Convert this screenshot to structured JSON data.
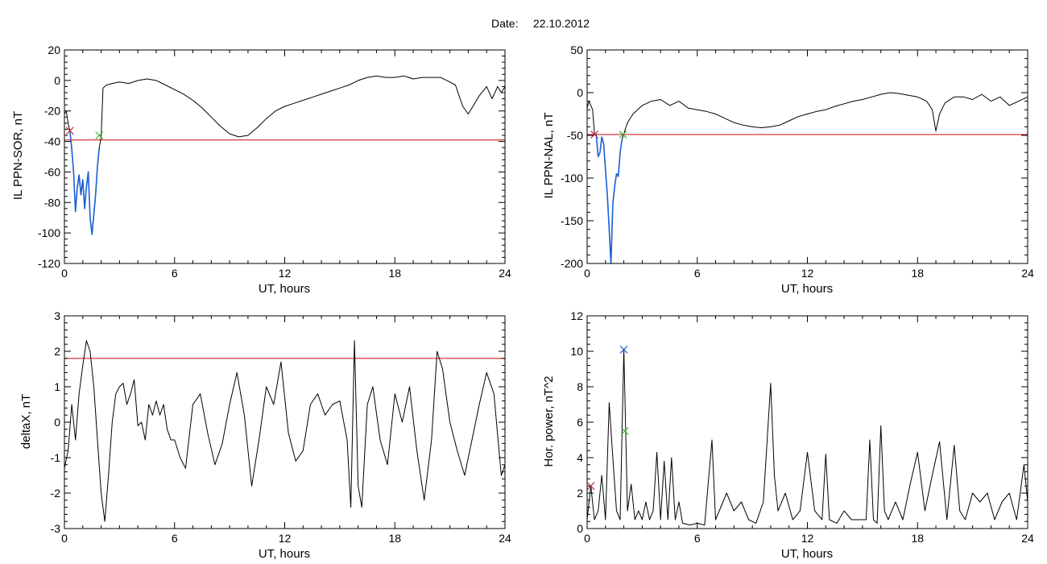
{
  "header": {
    "date_label": "Date:",
    "date_value": "22.10.2012"
  },
  "colors": {
    "trace": "#000000",
    "highlight": "#1a5fd6",
    "threshold": "#d42020",
    "start_marker": "#c0303a",
    "end_marker": "#38b030",
    "peak_marker": "#1a5fd6"
  },
  "chart_data": [
    {
      "id": "sor",
      "type": "line",
      "ylabel": "IL PPN-SOR, nT",
      "xlabel": "UT, hours",
      "xlim": [
        0,
        24
      ],
      "ylim": [
        -120,
        20
      ],
      "xticks": [
        0,
        6,
        12,
        18,
        24
      ],
      "yticks": [
        -120,
        -100,
        -80,
        -60,
        -40,
        -20,
        0,
        20
      ],
      "threshold": -39,
      "highlight_range": [
        0.25,
        1.95
      ],
      "series": [
        {
          "x": [
            0,
            0.1,
            0.2,
            0.3,
            0.4,
            0.5,
            0.6,
            0.7,
            0.8,
            0.9,
            1.0,
            1.1,
            1.2,
            1.3,
            1.4,
            1.5,
            1.6,
            1.7,
            1.8,
            1.9,
            2.0,
            2.1,
            2.3,
            2.6,
            3.0,
            3.5,
            4.0,
            4.5,
            5.0,
            5.5,
            6.0,
            6.5,
            7.0,
            7.5,
            8.0,
            8.5,
            9.0,
            9.5,
            10.0,
            10.5,
            11.0,
            11.5,
            12.0,
            12.5,
            13.0,
            13.5,
            14.0,
            14.5,
            15.0,
            15.5,
            16.0,
            16.5,
            17.0,
            17.5,
            18.0,
            18.5,
            19.0,
            19.5,
            20.0,
            20.5,
            21.0,
            21.3,
            21.5,
            21.7,
            22.0,
            22.3,
            22.6,
            23.0,
            23.3,
            23.6,
            23.8,
            24.0
          ],
          "y": [
            -22,
            -20,
            -28,
            -33,
            -45,
            -60,
            -86,
            -70,
            -62,
            -75,
            -65,
            -84,
            -70,
            -60,
            -90,
            -101,
            -88,
            -75,
            -56,
            -44,
            -37,
            -5,
            -3,
            -2,
            -1,
            -2,
            0,
            1,
            0,
            -3,
            -6,
            -9,
            -13,
            -18,
            -24,
            -30,
            -35,
            -37,
            -36,
            -31,
            -25,
            -20,
            -17,
            -15,
            -13,
            -11,
            -9,
            -7,
            -5,
            -3,
            0,
            2,
            3,
            2,
            2,
            3,
            1,
            2,
            2,
            2,
            -1,
            -3,
            -10,
            -17,
            -22,
            -16,
            -10,
            -4,
            -12,
            -4,
            -8,
            -4
          ]
        }
      ],
      "markers": [
        {
          "kind": "start",
          "x": 0.3,
          "y": -33
        },
        {
          "kind": "end",
          "x": 1.9,
          "y": -36
        }
      ]
    },
    {
      "id": "nal",
      "type": "line",
      "ylabel": "IL PPN-NAL, nT",
      "xlabel": "UT, hours",
      "xlim": [
        0,
        24
      ],
      "ylim": [
        -200,
        50
      ],
      "xticks": [
        0,
        6,
        12,
        18,
        24
      ],
      "yticks": [
        -200,
        -150,
        -100,
        -50,
        0,
        50
      ],
      "threshold": -49,
      "highlight_range": [
        0.35,
        1.95
      ],
      "series": [
        {
          "x": [
            0,
            0.1,
            0.2,
            0.3,
            0.4,
            0.5,
            0.6,
            0.7,
            0.8,
            0.9,
            1.0,
            1.1,
            1.2,
            1.3,
            1.4,
            1.5,
            1.6,
            1.7,
            1.8,
            1.9,
            2.0,
            2.2,
            2.5,
            3.0,
            3.5,
            4.0,
            4.5,
            5.0,
            5.5,
            6.0,
            6.5,
            7.0,
            7.5,
            8.0,
            8.5,
            9.0,
            9.5,
            10.0,
            10.5,
            11.0,
            11.5,
            12.0,
            12.5,
            13.0,
            13.5,
            14.0,
            14.5,
            15.0,
            15.5,
            16.0,
            16.5,
            17.0,
            17.5,
            18.0,
            18.5,
            18.8,
            19.0,
            19.2,
            19.5,
            20.0,
            20.5,
            21.0,
            21.5,
            22.0,
            22.5,
            23.0,
            23.5,
            24.0
          ],
          "y": [
            -18,
            -10,
            -15,
            -20,
            -48,
            -50,
            -75,
            -70,
            -52,
            -60,
            -90,
            -120,
            -160,
            -200,
            -130,
            -110,
            -95,
            -98,
            -70,
            -55,
            -48,
            -35,
            -25,
            -15,
            -10,
            -8,
            -15,
            -10,
            -18,
            -20,
            -22,
            -25,
            -30,
            -35,
            -38,
            -40,
            -41,
            -40,
            -38,
            -33,
            -28,
            -25,
            -22,
            -20,
            -16,
            -13,
            -10,
            -8,
            -5,
            -2,
            0,
            -1,
            -3,
            -5,
            -10,
            -20,
            -45,
            -25,
            -12,
            -5,
            -5,
            -8,
            -2,
            -10,
            -5,
            -15,
            -10,
            -5
          ]
        }
      ],
      "markers": [
        {
          "kind": "start",
          "x": 0.4,
          "y": -49
        },
        {
          "kind": "end",
          "x": 1.95,
          "y": -49
        }
      ]
    },
    {
      "id": "deltax",
      "type": "line",
      "ylabel": "deltaX, nT",
      "xlabel": "UT, hours",
      "xlim": [
        0,
        24
      ],
      "ylim": [
        -3,
        3
      ],
      "xticks": [
        0,
        6,
        12,
        18,
        24
      ],
      "yticks": [
        -3,
        -2,
        -1,
        0,
        1,
        2,
        3
      ],
      "threshold": 1.8,
      "series": [
        {
          "x": [
            0,
            0.2,
            0.4,
            0.6,
            0.8,
            1.0,
            1.2,
            1.4,
            1.6,
            1.8,
            2.0,
            2.2,
            2.4,
            2.6,
            2.8,
            3.0,
            3.2,
            3.4,
            3.6,
            3.8,
            4.0,
            4.2,
            4.4,
            4.6,
            4.8,
            5.0,
            5.2,
            5.4,
            5.6,
            5.8,
            6.0,
            6.3,
            6.6,
            7.0,
            7.4,
            7.8,
            8.2,
            8.6,
            9.0,
            9.4,
            9.8,
            10.2,
            10.6,
            11.0,
            11.4,
            11.8,
            12.2,
            12.6,
            13.0,
            13.4,
            13.8,
            14.2,
            14.6,
            15.0,
            15.4,
            15.6,
            15.8,
            16.0,
            16.2,
            16.5,
            16.8,
            17.2,
            17.6,
            18.0,
            18.4,
            18.8,
            19.2,
            19.6,
            20.0,
            20.3,
            20.6,
            21.0,
            21.4,
            21.8,
            22.2,
            22.6,
            23.0,
            23.4,
            23.8,
            24.0
          ],
          "y": [
            -1.3,
            -0.8,
            0.5,
            -0.5,
            0.8,
            1.6,
            2.3,
            2.0,
            1.0,
            -0.5,
            -2.0,
            -2.8,
            -1.5,
            0,
            0.8,
            1.0,
            1.1,
            0.5,
            0.8,
            1.2,
            -0.1,
            0,
            -0.5,
            0.5,
            0.2,
            0.6,
            0.2,
            0.5,
            -0.2,
            -0.5,
            -0.5,
            -1.0,
            -1.3,
            0.5,
            0.8,
            -0.3,
            -1.2,
            -0.6,
            0.5,
            1.4,
            0.2,
            -1.8,
            -0.5,
            1.0,
            0.5,
            1.7,
            -0.3,
            -1.1,
            -0.8,
            0.5,
            0.8,
            0.2,
            0.5,
            0.6,
            -0.5,
            -2.4,
            2.3,
            -1.8,
            -2.4,
            0.5,
            1.0,
            -0.5,
            -1.2,
            0.8,
            0,
            1.0,
            -0.8,
            -2.2,
            -0.5,
            2.0,
            1.5,
            0,
            -0.8,
            -1.5,
            -0.5,
            0.5,
            1.4,
            0.8,
            -1.5,
            -1.2
          ]
        }
      ]
    },
    {
      "id": "power",
      "type": "line",
      "ylabel": "Hor. power, nT^2",
      "xlabel": "UT, hours",
      "xlim": [
        0,
        24
      ],
      "ylim": [
        0,
        12
      ],
      "xticks": [
        0,
        6,
        12,
        18,
        24
      ],
      "yticks": [
        0,
        2,
        4,
        6,
        8,
        10,
        12
      ],
      "series": [
        {
          "x": [
            0,
            0.2,
            0.4,
            0.6,
            0.8,
            1.0,
            1.2,
            1.4,
            1.6,
            1.8,
            2.0,
            2.2,
            2.4,
            2.6,
            2.8,
            3.0,
            3.2,
            3.4,
            3.6,
            3.8,
            4.0,
            4.2,
            4.4,
            4.6,
            4.8,
            5.0,
            5.2,
            5.6,
            6.0,
            6.4,
            6.8,
            7.0,
            7.2,
            7.6,
            8.0,
            8.4,
            8.8,
            9.2,
            9.6,
            10.0,
            10.2,
            10.4,
            10.6,
            10.8,
            11.2,
            11.6,
            12.0,
            12.4,
            12.8,
            13.0,
            13.2,
            13.6,
            14.0,
            14.4,
            14.8,
            15.2,
            15.4,
            15.6,
            15.8,
            16.0,
            16.2,
            16.4,
            16.8,
            17.2,
            17.6,
            18.0,
            18.4,
            18.8,
            19.2,
            19.6,
            20.0,
            20.3,
            20.6,
            21.0,
            21.4,
            21.8,
            22.2,
            22.6,
            23.0,
            23.4,
            23.8,
            24.0
          ],
          "y": [
            0.5,
            2.4,
            0.5,
            1.0,
            3.0,
            0.5,
            7.1,
            4.0,
            1.0,
            0.5,
            10.1,
            1.0,
            2.5,
            0.5,
            1.0,
            0.5,
            1.5,
            0.5,
            1.0,
            4.3,
            0.5,
            3.8,
            0.5,
            4.0,
            0.5,
            1.5,
            0.3,
            0.2,
            0.3,
            0.2,
            5.0,
            0.5,
            1.0,
            2.0,
            1.0,
            1.5,
            0.5,
            0.3,
            1.5,
            8.2,
            3.0,
            1.0,
            1.5,
            2.0,
            0.5,
            1.0,
            4.3,
            1.0,
            0.5,
            4.2,
            0.5,
            0.3,
            1.0,
            0.5,
            0.5,
            0.5,
            5.0,
            0.5,
            0.3,
            5.8,
            1.0,
            0.5,
            1.5,
            0.5,
            2.5,
            4.3,
            1.0,
            3.0,
            4.9,
            0.5,
            4.7,
            1.0,
            0.5,
            2.0,
            1.5,
            2.0,
            0.5,
            1.5,
            2.0,
            0.5,
            3.6,
            1.5
          ]
        }
      ],
      "markers": [
        {
          "kind": "start",
          "x": 0.2,
          "y": 2.4
        },
        {
          "kind": "peak",
          "x": 2.0,
          "y": 10.1
        },
        {
          "kind": "end",
          "x": 2.05,
          "y": 5.5
        }
      ]
    }
  ]
}
